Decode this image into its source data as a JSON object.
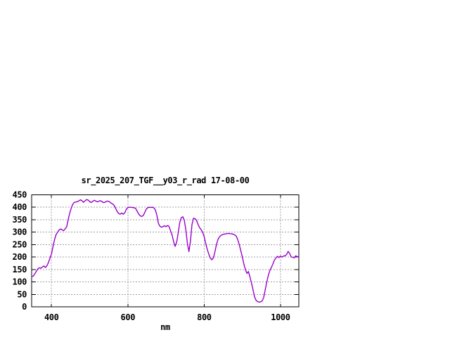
{
  "page": {
    "background": "#ffffff"
  },
  "chart_data": {
    "type": "line",
    "title": "sr_2025_207_TGF__y03_r_rad 17-08-00",
    "xlabel": "nm",
    "ylabel": "",
    "xlim": [
      348,
      1048
    ],
    "ylim": [
      0,
      450
    ],
    "x_ticks": [
      400,
      600,
      800,
      1000
    ],
    "y_ticks": [
      0,
      50,
      100,
      150,
      200,
      250,
      300,
      350,
      400,
      450
    ],
    "grid": "dashed",
    "legend": "none",
    "colors": {
      "line": "#9900cc",
      "grid": "#9e9e9e",
      "axis": "#000000",
      "text": "#000000",
      "background": "#ffffff"
    },
    "series": [
      {
        "name": "sr_2025_207_TGF__y03_r_rad",
        "x_start": 348,
        "x_step": 4,
        "values": [
          122,
          123,
          132,
          142,
          152,
          157,
          155,
          160,
          164,
          158,
          165,
          178,
          196,
          212,
          242,
          270,
          290,
          300,
          309,
          313,
          309,
          306,
          314,
          322,
          352,
          378,
          398,
          413,
          420,
          421,
          423,
          426,
          430,
          426,
          420,
          426,
          431,
          429,
          423,
          419,
          424,
          428,
          425,
          422,
          424,
          427,
          423,
          419,
          420,
          424,
          425,
          422,
          417,
          413,
          408,
          396,
          383,
          375,
          372,
          377,
          372,
          378,
          392,
          399,
          400,
          400,
          399,
          398,
          396,
          385,
          374,
          366,
          363,
          366,
          378,
          392,
          398,
          400,
          399,
          400,
          398,
          390,
          368,
          336,
          324,
          320,
          322,
          326,
          322,
          327,
          323,
          305,
          288,
          262,
          243,
          260,
          298,
          338,
          358,
          362,
          348,
          310,
          255,
          222,
          262,
          330,
          356,
          354,
          348,
          331,
          318,
          310,
          300,
          282,
          255,
          232,
          212,
          196,
          189,
          196,
          220,
          248,
          270,
          281,
          287,
          290,
          292,
          293,
          294,
          295,
          294,
          293,
          292,
          289,
          284,
          270,
          250,
          225,
          200,
          172,
          150,
          134,
          142,
          120,
          95,
          68,
          40,
          26,
          21,
          19,
          20,
          24,
          38,
          68,
          100,
          126,
          145,
          158,
          172,
          188,
          196,
          203,
          198,
          204,
          200,
          204,
          205,
          210,
          223,
          214,
          201,
          199,
          197,
          205,
          201,
          203
        ]
      }
    ]
  }
}
